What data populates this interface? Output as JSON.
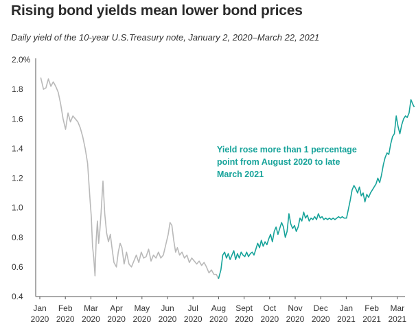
{
  "chart_data": {
    "type": "line",
    "title": "Rising bond yields mean lower bond prices",
    "subtitle": "Daily yield of the 10-year U.S.Treasury note, January 2, 2020–March 22, 2021",
    "xlabel": "",
    "ylabel": "",
    "ylim": [
      0.4,
      2.0
    ],
    "yticks": [
      0.4,
      0.6,
      0.8,
      1.0,
      1.2,
      1.4,
      1.6,
      1.8,
      2.0
    ],
    "ytick_labels": [
      "0.4",
      "0.6",
      "0.8",
      "1.0",
      "1.2",
      "1.4",
      "1.6",
      "1.8",
      "2.0%"
    ],
    "xtick_labels": [
      {
        "month": "Jan",
        "year": "2020"
      },
      {
        "month": "Feb",
        "year": "2020"
      },
      {
        "month": "Mar",
        "year": "2020"
      },
      {
        "month": "Apr",
        "year": "2020"
      },
      {
        "month": "May",
        "year": "2020"
      },
      {
        "month": "Jun",
        "year": "2020"
      },
      {
        "month": "Jul",
        "year": "2020"
      },
      {
        "month": "Aug",
        "year": "2020"
      },
      {
        "month": "Sept",
        "year": "2020"
      },
      {
        "month": "Oct",
        "year": "2020"
      },
      {
        "month": "Nov",
        "year": "2020"
      },
      {
        "month": "Dec",
        "year": "2020"
      },
      {
        "month": "Jan",
        "year": "2021"
      },
      {
        "month": "Feb",
        "year": "2021"
      },
      {
        "month": "Mar",
        "year": "2021"
      }
    ],
    "grid": false,
    "colors": {
      "before": "#b9b9b9",
      "after": "#17a39a"
    },
    "annotation": {
      "lines": [
        "Yield rose more than 1 percentage",
        "point from August 2020 to late",
        "March 2021"
      ]
    },
    "series": [
      {
        "values": [
          [
            2020.003,
            1.88
          ],
          [
            2020.012,
            1.8
          ],
          [
            2020.02,
            1.81
          ],
          [
            2020.028,
            1.87
          ],
          [
            2020.036,
            1.82
          ],
          [
            2020.044,
            1.85
          ],
          [
            2020.052,
            1.82
          ],
          [
            2020.06,
            1.78
          ],
          [
            2020.068,
            1.7
          ],
          [
            2020.076,
            1.6
          ],
          [
            2020.084,
            1.53
          ],
          [
            2020.092,
            1.64
          ],
          [
            2020.1,
            1.58
          ],
          [
            2020.108,
            1.62
          ],
          [
            2020.116,
            1.6
          ],
          [
            2020.124,
            1.58
          ],
          [
            2020.132,
            1.54
          ],
          [
            2020.14,
            1.48
          ],
          [
            2020.148,
            1.4
          ],
          [
            2020.156,
            1.3
          ],
          [
            2020.164,
            1.05
          ],
          [
            2020.168,
            0.94
          ],
          [
            2020.172,
            0.74
          ],
          [
            2020.176,
            0.66
          ],
          [
            2020.18,
            0.54
          ],
          [
            2020.184,
            0.78
          ],
          [
            2020.188,
            0.91
          ],
          [
            2020.192,
            0.76
          ],
          [
            2020.196,
            0.85
          ],
          [
            2020.2,
            0.97
          ],
          [
            2020.206,
            1.18
          ],
          [
            2020.212,
            0.96
          ],
          [
            2020.218,
            0.83
          ],
          [
            2020.224,
            0.77
          ],
          [
            2020.23,
            0.82
          ],
          [
            2020.236,
            0.72
          ],
          [
            2020.242,
            0.63
          ],
          [
            2020.25,
            0.6
          ],
          [
            2020.256,
            0.7
          ],
          [
            2020.262,
            0.76
          ],
          [
            2020.268,
            0.73
          ],
          [
            2020.275,
            0.62
          ],
          [
            2020.283,
            0.7
          ],
          [
            2020.291,
            0.62
          ],
          [
            2020.299,
            0.6
          ],
          [
            2020.307,
            0.64
          ],
          [
            2020.315,
            0.68
          ],
          [
            2020.323,
            0.63
          ],
          [
            2020.331,
            0.7
          ],
          [
            2020.339,
            0.66
          ],
          [
            2020.347,
            0.67
          ],
          [
            2020.355,
            0.72
          ],
          [
            2020.363,
            0.64
          ],
          [
            2020.371,
            0.68
          ],
          [
            2020.379,
            0.66
          ],
          [
            2020.387,
            0.7
          ],
          [
            2020.395,
            0.66
          ],
          [
            2020.403,
            0.68
          ],
          [
            2020.411,
            0.75
          ],
          [
            2020.419,
            0.82
          ],
          [
            2020.425,
            0.9
          ],
          [
            2020.431,
            0.88
          ],
          [
            2020.437,
            0.78
          ],
          [
            2020.443,
            0.7
          ],
          [
            2020.449,
            0.73
          ],
          [
            2020.456,
            0.68
          ],
          [
            2020.464,
            0.7
          ],
          [
            2020.472,
            0.66
          ],
          [
            2020.48,
            0.68
          ],
          [
            2020.488,
            0.63
          ],
          [
            2020.496,
            0.66
          ],
          [
            2020.504,
            0.64
          ],
          [
            2020.512,
            0.62
          ],
          [
            2020.52,
            0.64
          ],
          [
            2020.528,
            0.61
          ],
          [
            2020.536,
            0.63
          ],
          [
            2020.544,
            0.6
          ],
          [
            2020.552,
            0.56
          ],
          [
            2020.56,
            0.58
          ],
          [
            2020.568,
            0.55
          ],
          [
            2020.576,
            0.55
          ],
          [
            2020.583,
            0.52
          ]
        ]
      },
      {
        "values": [
          [
            2020.583,
            0.52
          ],
          [
            2020.591,
            0.58
          ],
          [
            2020.597,
            0.68
          ],
          [
            2020.603,
            0.7
          ],
          [
            2020.609,
            0.66
          ],
          [
            2020.615,
            0.69
          ],
          [
            2020.621,
            0.65
          ],
          [
            2020.627,
            0.68
          ],
          [
            2020.633,
            0.71
          ],
          [
            2020.639,
            0.65
          ],
          [
            2020.645,
            0.69
          ],
          [
            2020.651,
            0.66
          ],
          [
            2020.657,
            0.7
          ],
          [
            2020.663,
            0.68
          ],
          [
            2020.669,
            0.67
          ],
          [
            2020.675,
            0.7
          ],
          [
            2020.681,
            0.67
          ],
          [
            2020.687,
            0.69
          ],
          [
            2020.693,
            0.7
          ],
          [
            2020.699,
            0.68
          ],
          [
            2020.705,
            0.72
          ],
          [
            2020.711,
            0.76
          ],
          [
            2020.717,
            0.73
          ],
          [
            2020.723,
            0.78
          ],
          [
            2020.729,
            0.74
          ],
          [
            2020.735,
            0.77
          ],
          [
            2020.741,
            0.75
          ],
          [
            2020.747,
            0.79
          ],
          [
            2020.753,
            0.82
          ],
          [
            2020.759,
            0.77
          ],
          [
            2020.765,
            0.84
          ],
          [
            2020.771,
            0.87
          ],
          [
            2020.777,
            0.82
          ],
          [
            2020.783,
            0.86
          ],
          [
            2020.789,
            0.9
          ],
          [
            2020.795,
            0.87
          ],
          [
            2020.801,
            0.8
          ],
          [
            2020.807,
            0.84
          ],
          [
            2020.813,
            0.96
          ],
          [
            2020.819,
            0.89
          ],
          [
            2020.825,
            0.86
          ],
          [
            2020.831,
            0.88
          ],
          [
            2020.837,
            0.84
          ],
          [
            2020.843,
            0.87
          ],
          [
            2020.849,
            0.93
          ],
          [
            2020.855,
            0.91
          ],
          [
            2020.861,
            0.97
          ],
          [
            2020.867,
            0.93
          ],
          [
            2020.873,
            0.95
          ],
          [
            2020.879,
            0.91
          ],
          [
            2020.885,
            0.93
          ],
          [
            2020.891,
            0.92
          ],
          [
            2020.897,
            0.94
          ],
          [
            2020.903,
            0.92
          ],
          [
            2020.909,
            0.96
          ],
          [
            2020.915,
            0.93
          ],
          [
            2020.921,
            0.94
          ],
          [
            2020.927,
            0.92
          ],
          [
            2020.933,
            0.93
          ],
          [
            2020.939,
            0.92
          ],
          [
            2020.945,
            0.93
          ],
          [
            2020.951,
            0.92
          ],
          [
            2020.957,
            0.93
          ],
          [
            2020.963,
            0.92
          ],
          [
            2020.969,
            0.93
          ],
          [
            2020.975,
            0.94
          ],
          [
            2020.981,
            0.93
          ],
          [
            2020.987,
            0.94
          ],
          [
            2020.993,
            0.93
          ],
          [
            2021.001,
            0.93
          ],
          [
            2021.007,
            0.99
          ],
          [
            2021.013,
            1.05
          ],
          [
            2021.019,
            1.12
          ],
          [
            2021.025,
            1.15
          ],
          [
            2021.031,
            1.13
          ],
          [
            2021.037,
            1.1
          ],
          [
            2021.043,
            1.14
          ],
          [
            2021.049,
            1.08
          ],
          [
            2021.055,
            1.1
          ],
          [
            2021.061,
            1.04
          ],
          [
            2021.067,
            1.09
          ],
          [
            2021.073,
            1.07
          ],
          [
            2021.079,
            1.1
          ],
          [
            2021.085,
            1.12
          ],
          [
            2021.091,
            1.14
          ],
          [
            2021.097,
            1.16
          ],
          [
            2021.103,
            1.2
          ],
          [
            2021.109,
            1.17
          ],
          [
            2021.115,
            1.22
          ],
          [
            2021.121,
            1.29
          ],
          [
            2021.127,
            1.34
          ],
          [
            2021.133,
            1.37
          ],
          [
            2021.139,
            1.36
          ],
          [
            2021.145,
            1.43
          ],
          [
            2021.151,
            1.48
          ],
          [
            2021.157,
            1.5
          ],
          [
            2021.163,
            1.62
          ],
          [
            2021.169,
            1.55
          ],
          [
            2021.175,
            1.5
          ],
          [
            2021.181,
            1.56
          ],
          [
            2021.187,
            1.6
          ],
          [
            2021.193,
            1.62
          ],
          [
            2021.199,
            1.61
          ],
          [
            2021.205,
            1.64
          ],
          [
            2021.211,
            1.73
          ],
          [
            2021.217,
            1.7
          ],
          [
            2021.222,
            1.68
          ]
        ]
      }
    ]
  }
}
